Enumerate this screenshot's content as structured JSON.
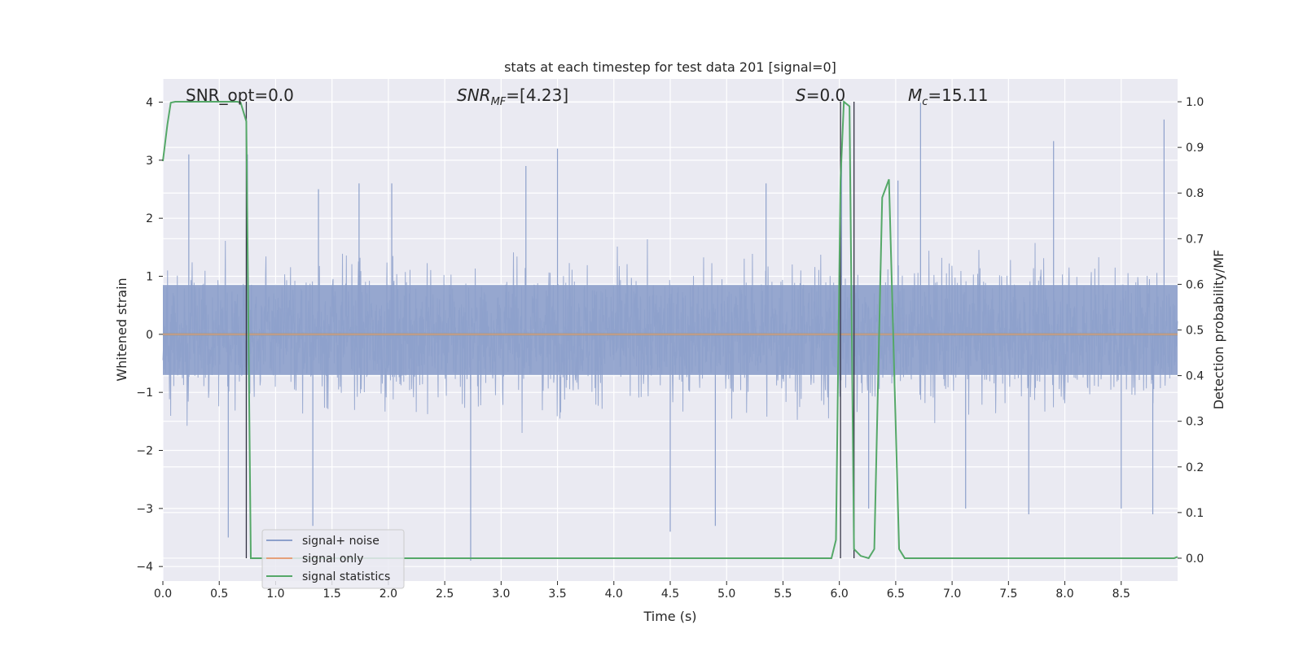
{
  "chart_data": {
    "type": "line",
    "title": "stats at each timestep for test data 201 [signal=0]",
    "xlabel": "Time (s)",
    "ylabel": "Whitened strain",
    "y2label": "Detection probability/MF",
    "xlim": [
      0.0,
      9.0
    ],
    "ylim": [
      -4.25,
      4.4
    ],
    "y2lim": [
      -0.05,
      1.05
    ],
    "grid": true,
    "legend_position": "lower-left",
    "xticks": [
      "0.0",
      "0.5",
      "1.0",
      "1.5",
      "2.0",
      "2.5",
      "3.0",
      "3.5",
      "4.0",
      "4.5",
      "5.0",
      "5.5",
      "6.0",
      "6.5",
      "7.0",
      "7.5",
      "8.0",
      "8.5"
    ],
    "yticks": [
      "4",
      "3",
      "2",
      "1",
      "0",
      "−1",
      "−2",
      "−3",
      "−4"
    ],
    "y2ticks": [
      "1.0",
      "0.9",
      "0.8",
      "0.7",
      "0.6",
      "0.5",
      "0.4",
      "0.3",
      "0.2",
      "0.1",
      "0.0"
    ],
    "annotations": {
      "snr_opt": "SNR_opt=0.0",
      "snr_mf_label": "SNR",
      "snr_mf_sub": "MF",
      "snr_mf_val": "=[4.23]",
      "s_label": "S",
      "s_val": "=0.0",
      "mc_label": "M",
      "mc_sub": "c",
      "mc_val": "=15.11"
    },
    "series": [
      {
        "name": "signal+ noise",
        "color": "#8da0cb",
        "axis": "left",
        "style": "noise",
        "sample_rate_hz": 2048,
        "envelope_peaks": [
          [
            0.23,
            3.1
          ],
          [
            0.75,
            3.1
          ],
          [
            1.38,
            2.5
          ],
          [
            1.74,
            2.6
          ],
          [
            2.03,
            2.6
          ],
          [
            3.5,
            3.2
          ],
          [
            3.22,
            2.9
          ],
          [
            5.35,
            2.6
          ],
          [
            6.02,
            3.2
          ],
          [
            6.52,
            2.65
          ],
          [
            6.72,
            3.99
          ],
          [
            7.9,
            3.33
          ],
          [
            8.88,
            3.7
          ]
        ],
        "envelope_troughs": [
          [
            0.58,
            -3.5
          ],
          [
            1.33,
            -3.3
          ],
          [
            2.73,
            -3.9
          ],
          [
            4.5,
            -3.4
          ],
          [
            4.9,
            -3.3
          ],
          [
            7.12,
            -3.0
          ],
          [
            7.68,
            -3.1
          ],
          [
            8.5,
            -3.0
          ],
          [
            8.78,
            -3.1
          ],
          [
            6.26,
            -3.0
          ]
        ]
      },
      {
        "name": "signal only",
        "color": "#e5a07a",
        "axis": "left",
        "x": [
          0.0,
          9.0
        ],
        "y": [
          0.0,
          0.0
        ]
      },
      {
        "name": "signal statistics",
        "color": "#55a868",
        "axis": "right",
        "x": [
          0.0,
          0.04,
          0.07,
          0.11,
          0.66,
          0.69,
          0.74,
          0.78,
          5.93,
          5.97,
          6.01,
          6.04,
          6.09,
          6.13,
          6.19,
          6.26,
          6.31,
          6.38,
          6.44,
          6.53,
          6.58,
          8.97,
          9.0
        ],
        "y": [
          0.87,
          0.95,
          0.998,
          1.0,
          1.0,
          0.998,
          0.957,
          0.0,
          0.0,
          0.04,
          0.825,
          1.0,
          0.99,
          0.02,
          0.005,
          0.0,
          0.02,
          0.79,
          0.83,
          0.02,
          0.0,
          0.0,
          0.003
        ]
      }
    ],
    "vlines": [
      0.74,
      6.01,
      6.13
    ]
  }
}
